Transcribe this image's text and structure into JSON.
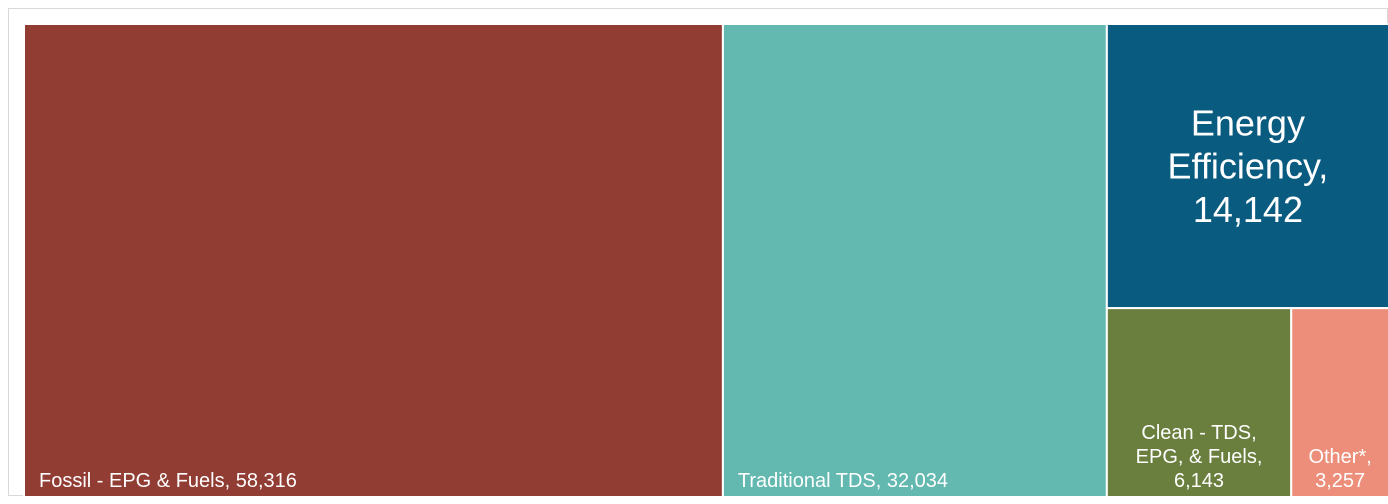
{
  "chart_data": {
    "type": "treemap",
    "title": "",
    "items": [
      {
        "name": "Fossil - EPG & Fuels",
        "value": 58316,
        "value_label": "58,316",
        "color": "#913D33",
        "label_lines": [
          "Fossil - EPG & Fuels, 58,316"
        ]
      },
      {
        "name": "Traditional TDS",
        "value": 32034,
        "value_label": "32,034",
        "color": "#63B8B0",
        "label_lines": [
          "Traditional TDS, 32,034"
        ]
      },
      {
        "name": "Energy Efficiency",
        "value": 14142,
        "value_label": "14,142",
        "color": "#0A5B80",
        "label_lines": [
          "Energy",
          "Efficiency,",
          "14,142"
        ]
      },
      {
        "name": "Clean - TDS, EPG, & Fuels",
        "value": 6143,
        "value_label": "6,143",
        "color": "#6A7E3D",
        "label_lines": [
          "Clean - TDS,",
          "EPG, & Fuels,",
          "6,143"
        ]
      },
      {
        "name": "Other*",
        "value": 3257,
        "value_label": "3,257",
        "color": "#EC8E79",
        "label_lines": [
          "Other*,",
          "3,257"
        ]
      }
    ]
  }
}
